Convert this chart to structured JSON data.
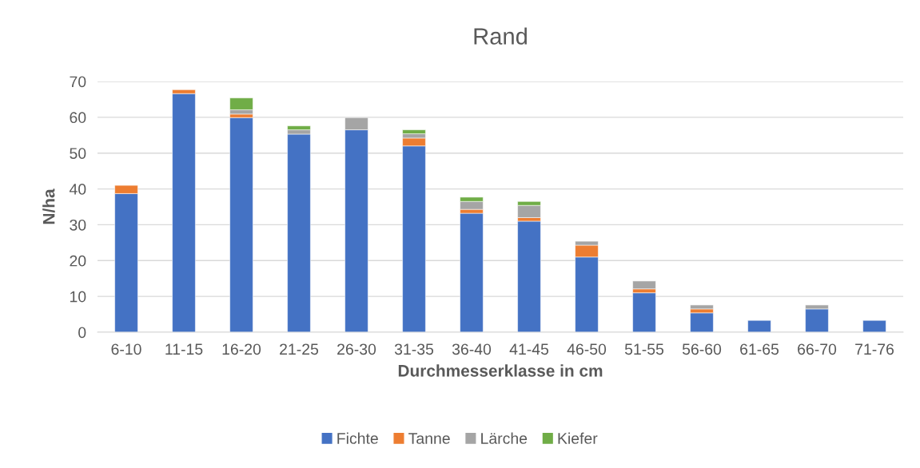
{
  "chart_data": {
    "type": "bar",
    "title": "Rand",
    "xlabel": "Durchmesserklasse in cm",
    "ylabel": "N/ha",
    "categories": [
      "6-10",
      "11-15",
      "16-20",
      "21-25",
      "26-30",
      "31-35",
      "36-40",
      "41-45",
      "46-50",
      "51-55",
      "56-60",
      "61-65",
      "66-70",
      "71-76"
    ],
    "stacked": true,
    "ylim": [
      0,
      70
    ],
    "yticks": [
      0,
      10,
      20,
      30,
      40,
      50,
      60,
      70
    ],
    "grid": "y",
    "legend": "bottom",
    "series": [
      {
        "name": "Fichte",
        "color": "#4472c4",
        "values": [
          38.7,
          66.6,
          59.9,
          55.3,
          56.5,
          52.0,
          33.2,
          31.0,
          21.0,
          11.0,
          5.4,
          3.3,
          6.5,
          3.3
        ]
      },
      {
        "name": "Tanne",
        "color": "#ed7d31",
        "values": [
          2.3,
          1.1,
          1.0,
          null,
          null,
          2.2,
          1.1,
          1.0,
          3.3,
          1.1,
          1.1,
          null,
          null,
          null
        ]
      },
      {
        "name": "Lärche",
        "color": "#a5a5a5",
        "values": [
          null,
          null,
          1.2,
          1.2,
          3.4,
          1.2,
          2.2,
          3.4,
          1.1,
          2.2,
          1.1,
          null,
          1.1,
          null
        ]
      },
      {
        "name": "Kiefer",
        "color": "#70ad47",
        "values": [
          null,
          null,
          3.3,
          1.1,
          null,
          1.1,
          1.2,
          1.1,
          null,
          null,
          null,
          null,
          null,
          null
        ]
      }
    ]
  }
}
